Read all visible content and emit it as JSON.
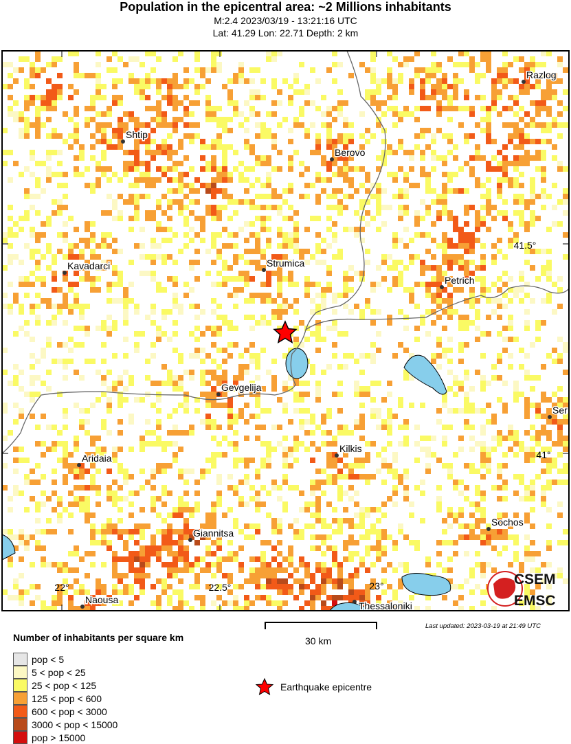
{
  "header": {
    "title": "Population in the epicentral area: ~2 Millions inhabitants",
    "line1": "M:2.4 2023/03/19 - 13:21:16 UTC",
    "line2": "Lat: 41.29 Lon: 22.71 Depth: 2 km"
  },
  "map": {
    "epicentre": {
      "lat": 41.29,
      "lon": 22.71
    },
    "cities": [
      {
        "name": "Shtip"
      },
      {
        "name": "Berovo"
      },
      {
        "name": "Razlog"
      },
      {
        "name": "Kavadarci"
      },
      {
        "name": "Strumica"
      },
      {
        "name": "Petrich"
      },
      {
        "name": "Gevgelija"
      },
      {
        "name": "Kilkis"
      },
      {
        "name": "Aridaia"
      },
      {
        "name": "Ser"
      },
      {
        "name": "Sochos"
      },
      {
        "name": "Giannitsa"
      },
      {
        "name": "Naousa"
      },
      {
        "name": "Thessaloniki"
      }
    ],
    "lat_labels": [
      "41.5°",
      "41°"
    ],
    "lon_labels": [
      "22°",
      "22.5°",
      "23°"
    ],
    "colors": {
      "water": "#87ceeb",
      "border": "#666666",
      "epicentre": "#ff0000"
    }
  },
  "logo": {
    "top": "CSEM",
    "bottom": "EMSC"
  },
  "legend": {
    "title": "Number of inhabitants per square km",
    "items": [
      {
        "label": "pop < 5",
        "color": "#e6e6e6"
      },
      {
        "label": "5 < pop < 25",
        "color": "#fcf8c4"
      },
      {
        "label": "25 < pop < 125",
        "color": "#fafa64"
      },
      {
        "label": "125 < pop < 600",
        "color": "#f7a035"
      },
      {
        "label": "600 < pop < 3000",
        "color": "#f25a18"
      },
      {
        "label": "3000 < pop < 15000",
        "color": "#b84a1a"
      },
      {
        "label": "pop > 15000",
        "color": "#d40e0e"
      }
    ],
    "epicentre_label": "Earthquake epicentre"
  },
  "scale_bar": {
    "label": "30 km"
  },
  "last_updated": "Last updated: 2023-03-19 at 21:49 UTC"
}
